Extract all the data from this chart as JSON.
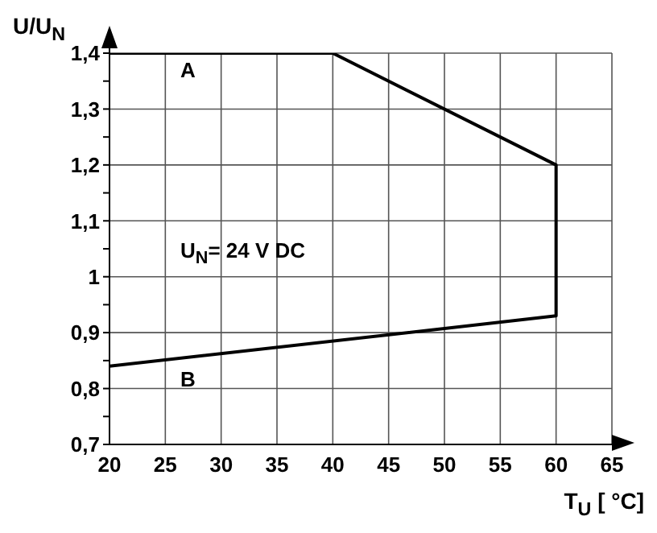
{
  "chart_data": {
    "type": "line",
    "xlabel": "T$_{U}$ [ °C]",
    "ylabel": "U/U$_{N}$",
    "x": [
      20,
      40,
      60,
      60,
      20
    ],
    "series": [
      {
        "color": "#000000",
        "values": [
          1.4,
          1.4,
          1.2,
          0.93,
          0.84
        ]
      }
    ],
    "xlim": [
      20,
      65
    ],
    "xticks": [
      20,
      25,
      30,
      35,
      40,
      45,
      50,
      55,
      60,
      65
    ],
    "ylim": [
      0.7,
      1.4
    ],
    "yticks": [
      {
        "value": 0.7,
        "label": "0,7"
      },
      {
        "value": 0.75,
        "label": null
      },
      {
        "value": 0.8,
        "label": "0,8"
      },
      {
        "value": 0.85,
        "label": null
      },
      {
        "value": 0.9,
        "label": "0,9"
      },
      {
        "value": 0.95,
        "label": null
      },
      {
        "value": 1,
        "label": "1"
      },
      {
        "value": 1.05,
        "label": null
      },
      {
        "value": 1.1,
        "label": "1,1"
      },
      {
        "value": 1.15,
        "label": null
      },
      {
        "value": 1.2,
        "label": "1,2"
      },
      {
        "value": 1.25,
        "label": null
      },
      {
        "value": 1.3,
        "label": "1,3"
      },
      {
        "value": 1.35,
        "label": null
      },
      {
        "value": 1.4,
        "label": "1,4"
      }
    ],
    "grid": true,
    "marker": "none",
    "line_style": "solid",
    "annotations": [
      "A",
      "B",
      "U$_{N}$= 24 V DC"
    ]
  }
}
